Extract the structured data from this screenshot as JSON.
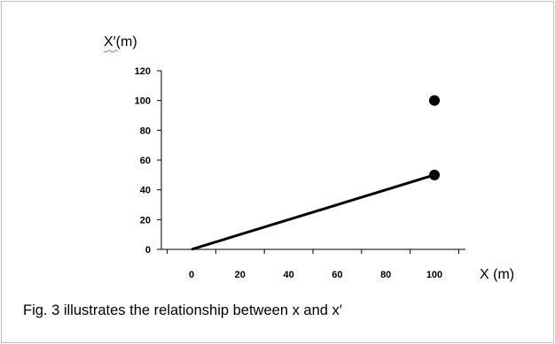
{
  "caption": "Fig. 3 illustrates the relationship between x and x′",
  "chart_data": {
    "type": "line",
    "ylabel": "X′(m)",
    "xlabel": "X (m)",
    "xlim": [
      0,
      100
    ],
    "ylim": [
      0,
      120
    ],
    "x_ticks": [
      0,
      20,
      40,
      60,
      80,
      100
    ],
    "y_ticks": [
      0,
      20,
      40,
      60,
      80,
      100,
      120
    ],
    "series": [
      {
        "type": "line",
        "points": [
          [
            0,
            0
          ],
          [
            100,
            50
          ]
        ]
      },
      {
        "type": "scatter",
        "points": [
          [
            100,
            50
          ],
          [
            100,
            100
          ]
        ]
      }
    ],
    "grid": false,
    "legend": "none"
  }
}
